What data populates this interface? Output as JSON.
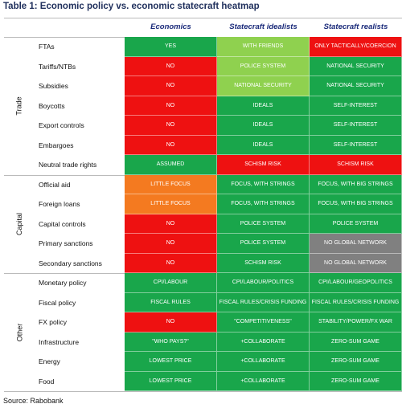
{
  "title": "Table 1: Economic policy vs. economic statecraft heatmap",
  "columns": [
    "Economics",
    "Statecraft idealists",
    "Statecraft realists"
  ],
  "groups": [
    {
      "label": "Trade",
      "rows": [
        {
          "label": "FTAs",
          "cells": [
            {
              "text": "YES",
              "color": "#19a64b"
            },
            {
              "text": "WITH FRIENDS",
              "color": "#8fd14f"
            },
            {
              "text": "ONLY TACTICALLY/COERCION",
              "color": "#ee1111"
            }
          ]
        },
        {
          "label": "Tariffs/NTBs",
          "cells": [
            {
              "text": "NO",
              "color": "#ee1111"
            },
            {
              "text": "POLICE SYSTEM",
              "color": "#8fd14f"
            },
            {
              "text": "NATIONAL SECURITY",
              "color": "#19a64b"
            }
          ]
        },
        {
          "label": "Subsidies",
          "cells": [
            {
              "text": "NO",
              "color": "#ee1111"
            },
            {
              "text": "NATIONAL SECURITY",
              "color": "#8fd14f"
            },
            {
              "text": "NATIONAL SECURITY",
              "color": "#19a64b"
            }
          ]
        },
        {
          "label": "Boycotts",
          "cells": [
            {
              "text": "NO",
              "color": "#ee1111"
            },
            {
              "text": "IDEALS",
              "color": "#19a64b"
            },
            {
              "text": "SELF-INTEREST",
              "color": "#19a64b"
            }
          ]
        },
        {
          "label": "Export controls",
          "cells": [
            {
              "text": "NO",
              "color": "#ee1111"
            },
            {
              "text": "IDEALS",
              "color": "#19a64b"
            },
            {
              "text": "SELF-INTEREST",
              "color": "#19a64b"
            }
          ]
        },
        {
          "label": "Embargoes",
          "cells": [
            {
              "text": "NO",
              "color": "#ee1111"
            },
            {
              "text": "IDEALS",
              "color": "#19a64b"
            },
            {
              "text": "SELF-INTEREST",
              "color": "#19a64b"
            }
          ]
        },
        {
          "label": "Neutral trade rights",
          "cells": [
            {
              "text": "ASSUMED",
              "color": "#19a64b"
            },
            {
              "text": "SCHISM RISK",
              "color": "#ee1111"
            },
            {
              "text": "SCHISM RISK",
              "color": "#ee1111"
            }
          ]
        }
      ]
    },
    {
      "label": "Capital",
      "rows": [
        {
          "label": "Official aid",
          "cells": [
            {
              "text": "LITTLE FOCUS",
              "color": "#f47a20"
            },
            {
              "text": "FOCUS, WITH STRINGS",
              "color": "#19a64b"
            },
            {
              "text": "FOCUS, WITH BIG STRINGS",
              "color": "#19a64b"
            }
          ]
        },
        {
          "label": "Foreign loans",
          "cells": [
            {
              "text": "LITTLE FOCUS",
              "color": "#f47a20"
            },
            {
              "text": "FOCUS, WITH STRINGS",
              "color": "#19a64b"
            },
            {
              "text": "FOCUS, WITH BIG STRINGS",
              "color": "#19a64b"
            }
          ]
        },
        {
          "label": "Capital controls",
          "cells": [
            {
              "text": "NO",
              "color": "#ee1111"
            },
            {
              "text": "POLICE SYSTEM",
              "color": "#19a64b"
            },
            {
              "text": "POLICE SYSTEM",
              "color": "#19a64b"
            }
          ]
        },
        {
          "label": "Primary sanctions",
          "cells": [
            {
              "text": "NO",
              "color": "#ee1111"
            },
            {
              "text": "POLICE SYSTEM",
              "color": "#19a64b"
            },
            {
              "text": "NO GLOBAL NETWORK",
              "color": "#808080"
            }
          ]
        },
        {
          "label": "Secondary sanctions",
          "cells": [
            {
              "text": "NO",
              "color": "#ee1111"
            },
            {
              "text": "SCHISM RISK",
              "color": "#19a64b"
            },
            {
              "text": "NO GLOBAL NETWORK",
              "color": "#808080"
            }
          ]
        }
      ]
    },
    {
      "label": "Other",
      "rows": [
        {
          "label": "Monetary policy",
          "cells": [
            {
              "text": "CPI/LABOUR",
              "color": "#19a64b"
            },
            {
              "text": "CPI/LABOUR/POLITICS",
              "color": "#19a64b"
            },
            {
              "text": "CPI/LABOUR/GEOPOLITICS",
              "color": "#19a64b"
            }
          ]
        },
        {
          "label": "Fiscal policy",
          "cells": [
            {
              "text": "FISCAL RULES",
              "color": "#19a64b"
            },
            {
              "text": "FISCAL RULES/CRISIS FUNDING",
              "color": "#19a64b"
            },
            {
              "text": "FISCAL RULES/CRISIS FUNDING",
              "color": "#19a64b"
            }
          ]
        },
        {
          "label": "FX policy",
          "cells": [
            {
              "text": "NO",
              "color": "#ee1111"
            },
            {
              "text": "\"COMPETITIVENESS\"",
              "color": "#19a64b"
            },
            {
              "text": "STABILITY/POWER/FX WAR",
              "color": "#19a64b"
            }
          ]
        },
        {
          "label": "Infrastructure",
          "cells": [
            {
              "text": "\"WHO PAYS?\"",
              "color": "#19a64b"
            },
            {
              "text": "+COLLABORATE",
              "color": "#19a64b"
            },
            {
              "text": "ZERO-SUM GAME",
              "color": "#19a64b"
            }
          ]
        },
        {
          "label": "Energy",
          "cells": [
            {
              "text": "LOWEST PRICE",
              "color": "#19a64b"
            },
            {
              "text": "+COLLABORATE",
              "color": "#19a64b"
            },
            {
              "text": "ZERO-SUM GAME",
              "color": "#19a64b"
            }
          ]
        },
        {
          "label": "Food",
          "cells": [
            {
              "text": "LOWEST PRICE",
              "color": "#19a64b"
            },
            {
              "text": "+COLLABORATE",
              "color": "#19a64b"
            },
            {
              "text": "ZERO-SUM GAME",
              "color": "#19a64b"
            }
          ]
        }
      ]
    }
  ],
  "source": "Source: Rabobank"
}
